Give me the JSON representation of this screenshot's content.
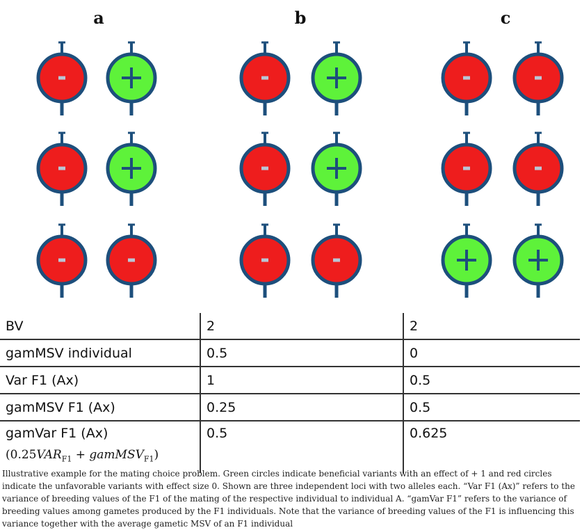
{
  "panels": [
    {
      "label": "a",
      "loci": [
        [
          "minus",
          "plus"
        ],
        [
          "minus",
          "plus"
        ],
        [
          "minus",
          "minus"
        ]
      ]
    },
    {
      "label": "b",
      "loci": [
        [
          "minus",
          "plus"
        ],
        [
          "minus",
          "plus"
        ],
        [
          "minus",
          "minus"
        ]
      ]
    },
    {
      "label": "c",
      "loci": [
        [
          "minus",
          "minus"
        ],
        [
          "minus",
          "minus"
        ],
        [
          "plus",
          "plus"
        ]
      ]
    }
  ],
  "symbols": {
    "plus": "+",
    "minus": "-"
  },
  "colors": {
    "plus": "#5ef23a",
    "minus": "#ee1d1d",
    "outline": "#1d4f7c",
    "stem": "#1d4f7c"
  },
  "table": {
    "rows": [
      {
        "label": "BV",
        "v1": "2",
        "v2": "2"
      },
      {
        "label": "gamMSV individual",
        "v1": "0.5",
        "v2": "0"
      },
      {
        "label": "Var F1 (Ax)",
        "v1": "1",
        "v2": "0.5"
      },
      {
        "label": "gamMSV F1 (Ax)",
        "v1": "0.25",
        "v2": "0.5"
      },
      {
        "label": "gamVar F1 (Ax)",
        "v1": "0.5",
        "v2": "0.625"
      }
    ],
    "formula": {
      "open": "(0.25",
      "var": "VAR",
      "sub1": "F1",
      "plus": " + ",
      "gam": "gamMSV",
      "sub2": "F1",
      "close": ")"
    }
  },
  "caption": "Illustrative example for the mating choice problem. Green circles indicate beneficial variants with an effect of + 1 and red circles indicate the unfavorable variants with effect size 0. Shown are three independent loci with two alleles each. “Var F1 (Ax)” refers to the variance of breeding values of the F1 of the mating of the respective individual to individual A. “gamVar F1” refers to the variance of breeding values among gametes produced by the F1 individuals. Note that the variance of breeding values of the F1 is influencing this variance together with the average gametic MSV of an F1 individual"
}
